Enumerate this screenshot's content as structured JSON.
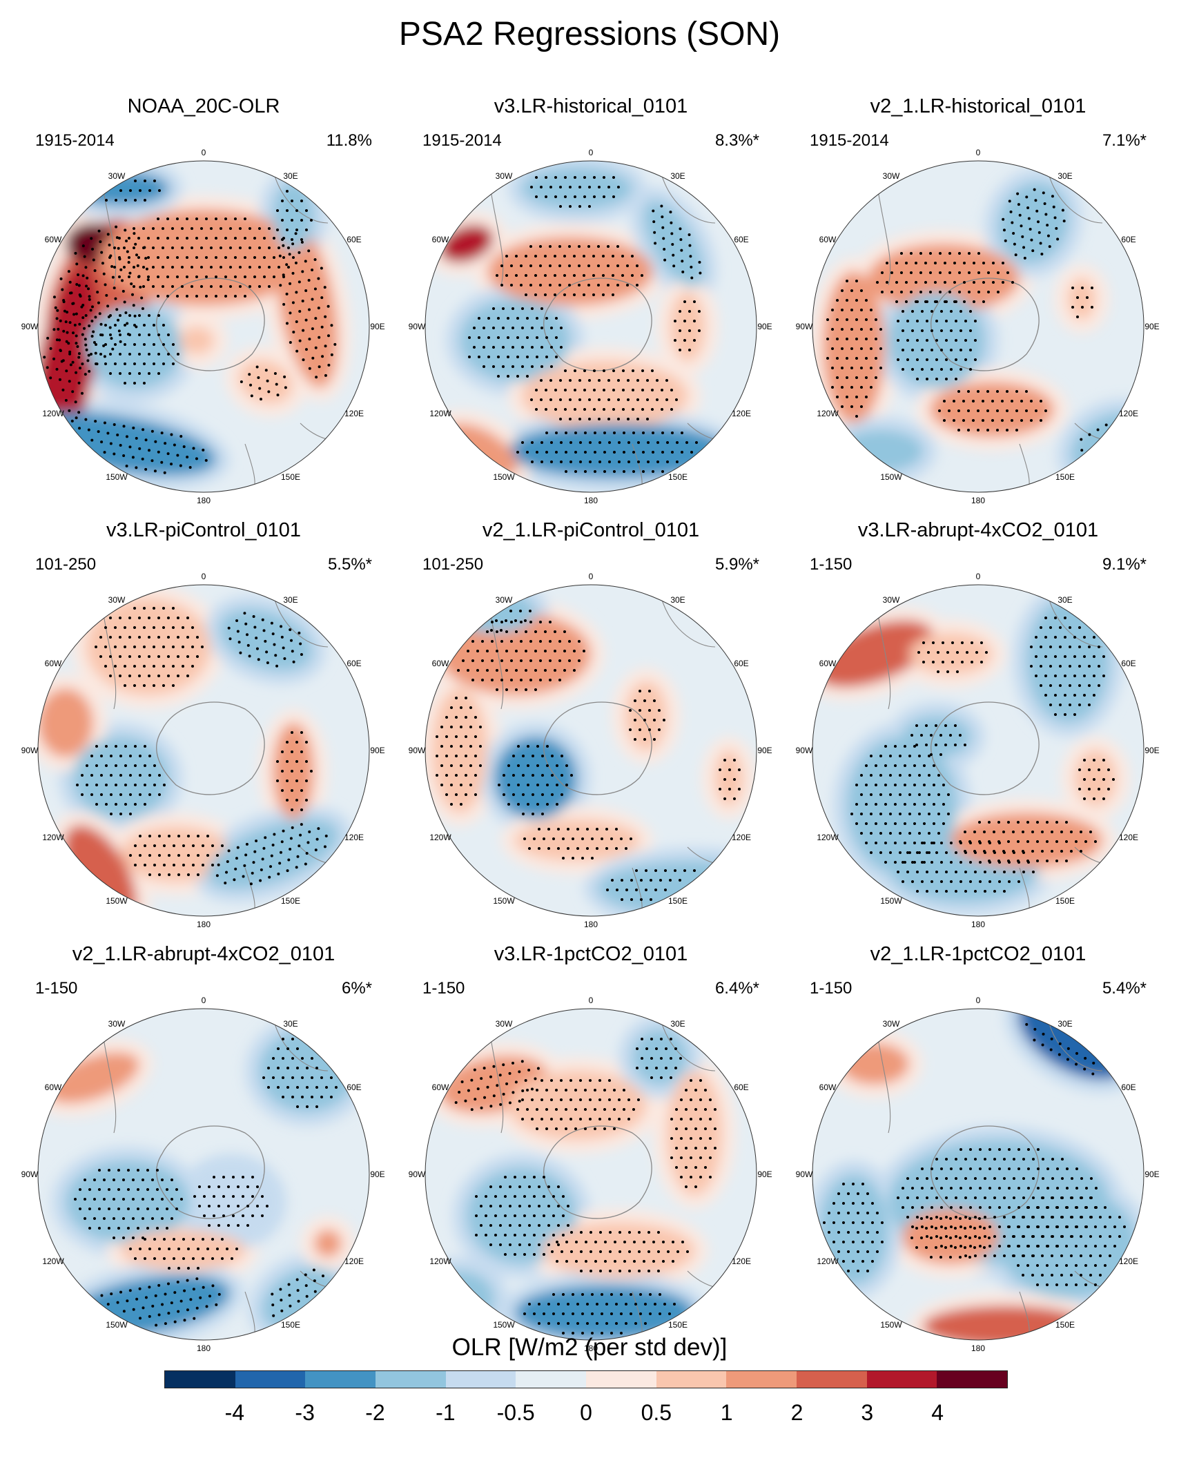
{
  "title": "PSA2 Regressions (SON)",
  "lon_labels": {
    "0": "0",
    "30E": "30E",
    "60E": "60E",
    "90E": "90E",
    "120E": "120E",
    "150E": "150E",
    "180": "180",
    "150W": "150W",
    "120W": "120W",
    "90W": "90W",
    "60W": "60W",
    "30W": "30W"
  },
  "panels": [
    {
      "title": "NOAA_20C-OLR",
      "period": "1915-2014",
      "pct": "11.8%"
    },
    {
      "title": "v3.LR-historical_0101",
      "period": "1915-2014",
      "pct": "8.3%*"
    },
    {
      "title": "v2_1.LR-historical_0101",
      "period": "1915-2014",
      "pct": "7.1%*"
    },
    {
      "title": "v3.LR-piControl_0101",
      "period": "101-250",
      "pct": "5.5%*"
    },
    {
      "title": "v2_1.LR-piControl_0101",
      "period": "101-250",
      "pct": "5.9%*"
    },
    {
      "title": "v3.LR-abrupt-4xCO2_0101",
      "period": "1-150",
      "pct": "9.1%*"
    },
    {
      "title": "v2_1.LR-abrupt-4xCO2_0101",
      "period": "1-150",
      "pct": "6%*"
    },
    {
      "title": "v3.LR-1pctCO2_0101",
      "period": "1-150",
      "pct": "6.4%*"
    },
    {
      "title": "v2_1.LR-1pctCO2_0101",
      "period": "1-150",
      "pct": "5.4%*"
    }
  ],
  "colorbar": {
    "title": "OLR [W/m2 (per std dev)]",
    "colors": [
      "#053061",
      "#2166ac",
      "#4393c3",
      "#92c5de",
      "#c6dbef",
      "#e5eef4",
      "#fbe9e1",
      "#f9c6ae",
      "#ee9a7a",
      "#d6604d",
      "#b2182b",
      "#67001f"
    ],
    "tick_labels": [
      "-4",
      "-3",
      "-2",
      "-1",
      "-0.5",
      "0",
      "0.5",
      "1",
      "2",
      "3",
      "4"
    ]
  }
}
